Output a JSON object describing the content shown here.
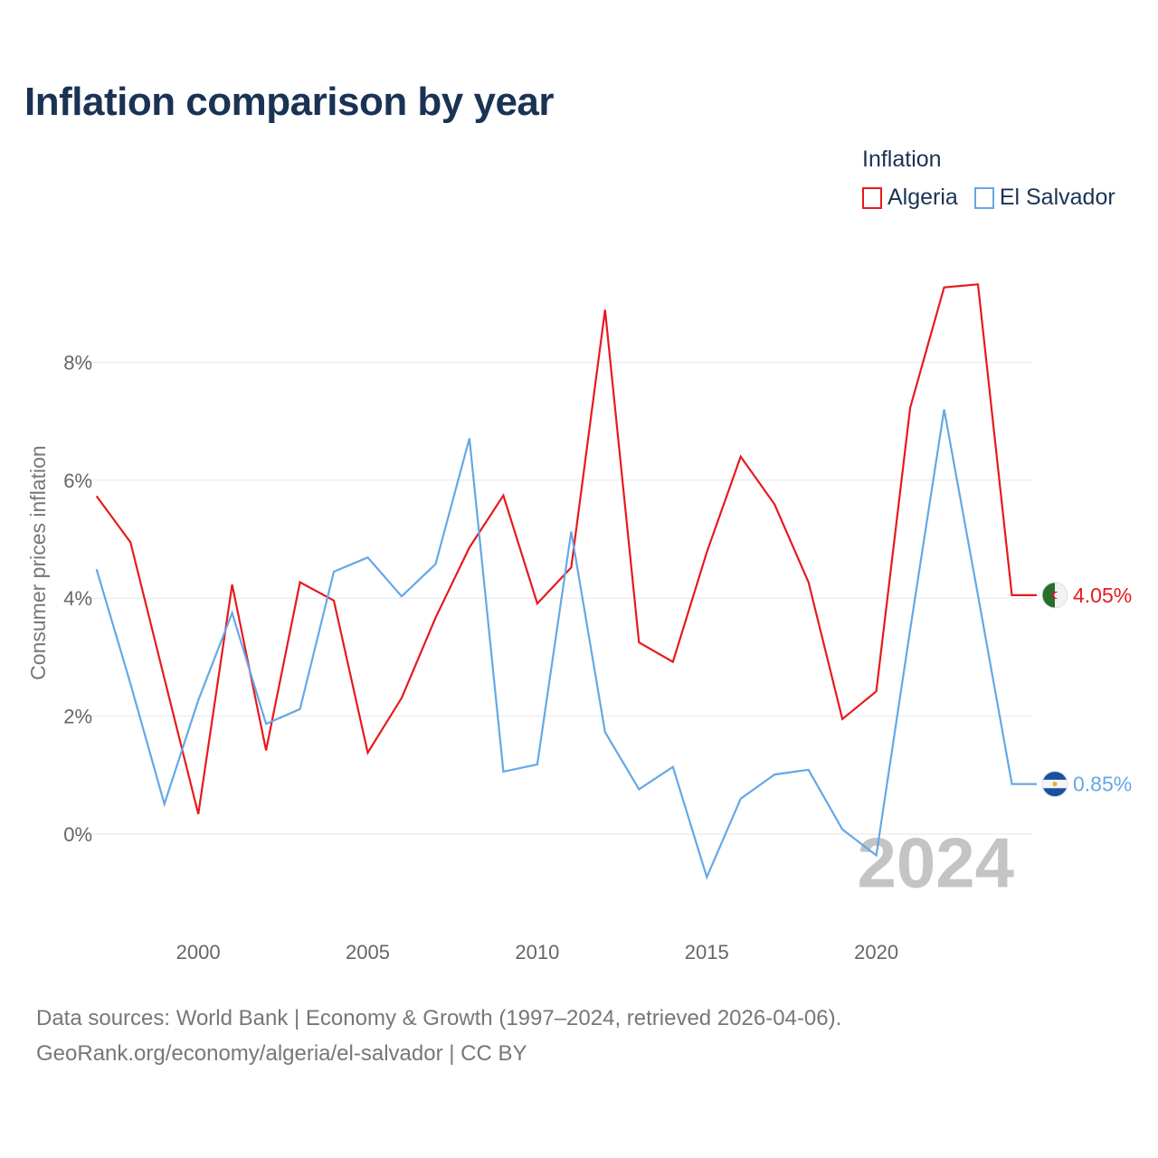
{
  "header": {
    "title": "Inflation comparison by year"
  },
  "legend": {
    "title": "Inflation",
    "items": [
      {
        "label": "Algeria",
        "color": "#e8191d"
      },
      {
        "label": "El Salvador",
        "color": "#64a8e6"
      }
    ]
  },
  "chart_data": {
    "type": "line",
    "title": "Inflation comparison by year",
    "xlabel": "",
    "ylabel": "Consumer prices inflation",
    "x": [
      1997,
      1998,
      1999,
      2000,
      2001,
      2002,
      2003,
      2004,
      2005,
      2006,
      2007,
      2008,
      2009,
      2010,
      2011,
      2012,
      2013,
      2014,
      2015,
      2016,
      2017,
      2018,
      2019,
      2020,
      2021,
      2022,
      2023,
      2024
    ],
    "xlim": [
      1996.5,
      2024.6
    ],
    "ylim": [
      -1.35,
      10
    ],
    "x_ticks": [
      2000,
      2005,
      2010,
      2015,
      2020
    ],
    "x_tick_labels": [
      "2000",
      "2005",
      "2010",
      "2015",
      "2020"
    ],
    "y_ticks": [
      0,
      2,
      4,
      6,
      8
    ],
    "y_tick_labels": [
      "0%",
      "2%",
      "4%",
      "6%",
      "8%"
    ],
    "grid": true,
    "series": [
      {
        "name": "Algeria",
        "color": "#e8191d",
        "values": [
          5.73,
          4.95,
          2.64,
          0.34,
          4.23,
          1.42,
          4.27,
          3.96,
          1.38,
          2.31,
          3.67,
          4.86,
          5.74,
          3.91,
          4.52,
          8.89,
          3.25,
          2.92,
          4.78,
          6.4,
          5.59,
          4.27,
          1.95,
          2.42,
          7.23,
          9.27,
          9.32,
          4.05
        ],
        "end_label": "4.05%",
        "flag": "algeria"
      },
      {
        "name": "El Salvador",
        "color": "#64a8e6",
        "values": [
          4.49,
          2.55,
          0.51,
          2.27,
          3.75,
          1.87,
          2.12,
          4.45,
          4.69,
          4.03,
          4.58,
          6.71,
          1.06,
          1.18,
          5.13,
          1.73,
          0.76,
          1.14,
          -0.73,
          0.6,
          1.01,
          1.09,
          0.08,
          -0.36,
          3.47,
          7.2,
          4.05,
          0.85
        ],
        "end_label": "0.85%",
        "flag": "el-salvador"
      }
    ],
    "annotations": [
      {
        "text": "2024",
        "position": "bottom-right"
      }
    ]
  },
  "footer": {
    "line1": "Data sources: World Bank | Economy & Growth (1997–2024, retrieved 2026-04-06).",
    "line2": "GeoRank.org/economy/algeria/el-salvador | CC BY"
  }
}
